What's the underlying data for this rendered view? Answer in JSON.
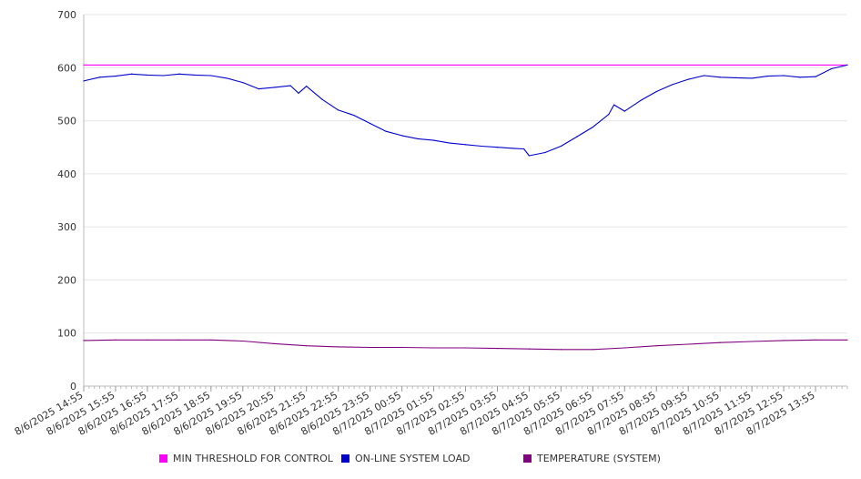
{
  "chart_data": {
    "type": "line",
    "ylim": [
      0,
      700
    ],
    "yticks": [
      0,
      100,
      200,
      300,
      400,
      500,
      600,
      700
    ],
    "grid": true,
    "legend_position": "bottom",
    "x_labels": [
      "8/6/2025 14:55",
      "8/6/2025 15:55",
      "8/6/2025 16:55",
      "8/6/2025 17:55",
      "8/6/2025 18:55",
      "8/6/2025 19:55",
      "8/6/2025 20:55",
      "8/6/2025 21:55",
      "8/6/2025 22:55",
      "8/6/2025 23:55",
      "8/7/2025 00:55",
      "8/7/2025 01:55",
      "8/7/2025 02:55",
      "8/7/2025 03:55",
      "8/7/2025 04:55",
      "8/7/2025 05:55",
      "8/7/2025 06:55",
      "8/7/2025 07:55",
      "8/7/2025 08:55",
      "8/7/2025 09:55",
      "8/7/2025 10:55",
      "8/7/2025 11:55",
      "8/7/2025 12:55",
      "8/7/2025 13:55"
    ],
    "x_start": "8/6/2025 14:55",
    "x_end": "8/7/2025 14:55",
    "series": [
      {
        "name": "MIN THRESHOLD FOR CONTROL",
        "color": "#ff00ff",
        "times": [
          "8/6/2025 14:55",
          "8/7/2025 14:55"
        ],
        "values": [
          605,
          605
        ]
      },
      {
        "name": "ON-LINE SYSTEM LOAD",
        "color": "#0000cc",
        "times": [
          "8/6/2025 14:55",
          "8/6/2025 15:25",
          "8/6/2025 15:55",
          "8/6/2025 16:25",
          "8/6/2025 16:55",
          "8/6/2025 17:25",
          "8/6/2025 17:55",
          "8/6/2025 18:25",
          "8/6/2025 18:55",
          "8/6/2025 19:25",
          "8/6/2025 19:55",
          "8/6/2025 20:25",
          "8/6/2025 20:55",
          "8/6/2025 21:25",
          "8/6/2025 21:40",
          "8/6/2025 21:55",
          "8/6/2025 22:25",
          "8/6/2025 22:55",
          "8/6/2025 23:25",
          "8/6/2025 23:55",
          "8/7/2025 00:25",
          "8/7/2025 00:55",
          "8/7/2025 01:25",
          "8/7/2025 01:55",
          "8/7/2025 02:25",
          "8/7/2025 02:55",
          "8/7/2025 03:25",
          "8/7/2025 03:55",
          "8/7/2025 04:25",
          "8/7/2025 04:45",
          "8/7/2025 04:55",
          "8/7/2025 05:25",
          "8/7/2025 05:55",
          "8/7/2025 06:25",
          "8/7/2025 06:55",
          "8/7/2025 07:25",
          "8/7/2025 07:35",
          "8/7/2025 07:55",
          "8/7/2025 08:25",
          "8/7/2025 08:55",
          "8/7/2025 09:25",
          "8/7/2025 09:55",
          "8/7/2025 10:25",
          "8/7/2025 10:55",
          "8/7/2025 11:25",
          "8/7/2025 11:55",
          "8/7/2025 12:25",
          "8/7/2025 12:55",
          "8/7/2025 13:25",
          "8/7/2025 13:55",
          "8/7/2025 14:25",
          "8/7/2025 14:55"
        ],
        "values": [
          575,
          582,
          584,
          588,
          586,
          585,
          588,
          586,
          585,
          580,
          572,
          560,
          563,
          566,
          552,
          565,
          540,
          520,
          510,
          495,
          480,
          472,
          466,
          463,
          458,
          455,
          452,
          450,
          448,
          447,
          434,
          440,
          452,
          470,
          488,
          512,
          530,
          518,
          538,
          555,
          568,
          578,
          585,
          582,
          581,
          580,
          584,
          585,
          582,
          583,
          598,
          605
        ]
      },
      {
        "name": "TEMPERATURE (SYSTEM)",
        "color": "#800080",
        "times": [
          "8/6/2025 14:55",
          "8/6/2025 15:55",
          "8/6/2025 16:55",
          "8/6/2025 17:55",
          "8/6/2025 18:55",
          "8/6/2025 19:55",
          "8/6/2025 20:55",
          "8/6/2025 21:55",
          "8/6/2025 22:55",
          "8/6/2025 23:55",
          "8/7/2025 00:55",
          "8/7/2025 01:55",
          "8/7/2025 02:55",
          "8/7/2025 03:55",
          "8/7/2025 04:55",
          "8/7/2025 05:55",
          "8/7/2025 06:55",
          "8/7/2025 07:55",
          "8/7/2025 08:55",
          "8/7/2025 09:55",
          "8/7/2025 10:55",
          "8/7/2025 11:55",
          "8/7/2025 12:55",
          "8/7/2025 13:55",
          "8/7/2025 14:55"
        ],
        "values": [
          86,
          87,
          87,
          87,
          87,
          85,
          80,
          76,
          74,
          73,
          73,
          72,
          72,
          71,
          70,
          69,
          69,
          72,
          76,
          79,
          82,
          84,
          86,
          87,
          87
        ]
      }
    ]
  }
}
